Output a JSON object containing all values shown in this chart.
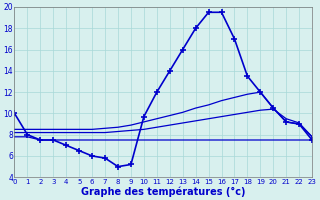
{
  "xlabel": "Graphe des températures (°c)",
  "bg_color": "#d8f0ee",
  "line_color": "#0000cc",
  "grid_color": "#a8d8d8",
  "hours": [
    0,
    1,
    2,
    3,
    4,
    5,
    6,
    7,
    8,
    9,
    10,
    11,
    12,
    13,
    14,
    15,
    16,
    17,
    18,
    19,
    20,
    21,
    22,
    23
  ],
  "temp_actual": [
    10,
    8,
    7.5,
    7.5,
    7,
    6.5,
    6,
    5.8,
    5,
    5.2,
    9.7,
    12,
    14,
    16,
    18,
    19.5,
    19.5,
    17,
    13.5,
    12,
    10.5,
    9.2,
    9,
    7.5
  ],
  "temp_min": [
    7.8,
    7.8,
    7.5,
    7.5,
    7.5,
    7.5,
    7.5,
    7.5,
    7.5,
    7.5,
    7.5,
    7.5,
    7.5,
    7.5,
    7.5,
    7.5,
    7.5,
    7.5,
    7.5,
    7.5,
    7.5,
    7.5,
    7.5,
    7.5
  ],
  "temp_mean": [
    8.2,
    8.2,
    8.2,
    8.2,
    8.2,
    8.2,
    8.2,
    8.2,
    8.3,
    8.4,
    8.5,
    8.7,
    8.9,
    9.1,
    9.3,
    9.5,
    9.7,
    9.9,
    10.1,
    10.3,
    10.4,
    9.5,
    9.1,
    7.8
  ],
  "temp_max": [
    8.5,
    8.5,
    8.5,
    8.5,
    8.5,
    8.5,
    8.5,
    8.6,
    8.7,
    8.9,
    9.2,
    9.5,
    9.8,
    10.1,
    10.5,
    10.8,
    11.2,
    11.5,
    11.8,
    12.0,
    10.5,
    9.2,
    9.0,
    7.8
  ],
  "ylim": [
    4,
    20
  ],
  "yticks": [
    4,
    6,
    8,
    10,
    12,
    14,
    16,
    18,
    20
  ],
  "xlim": [
    0,
    23
  ]
}
